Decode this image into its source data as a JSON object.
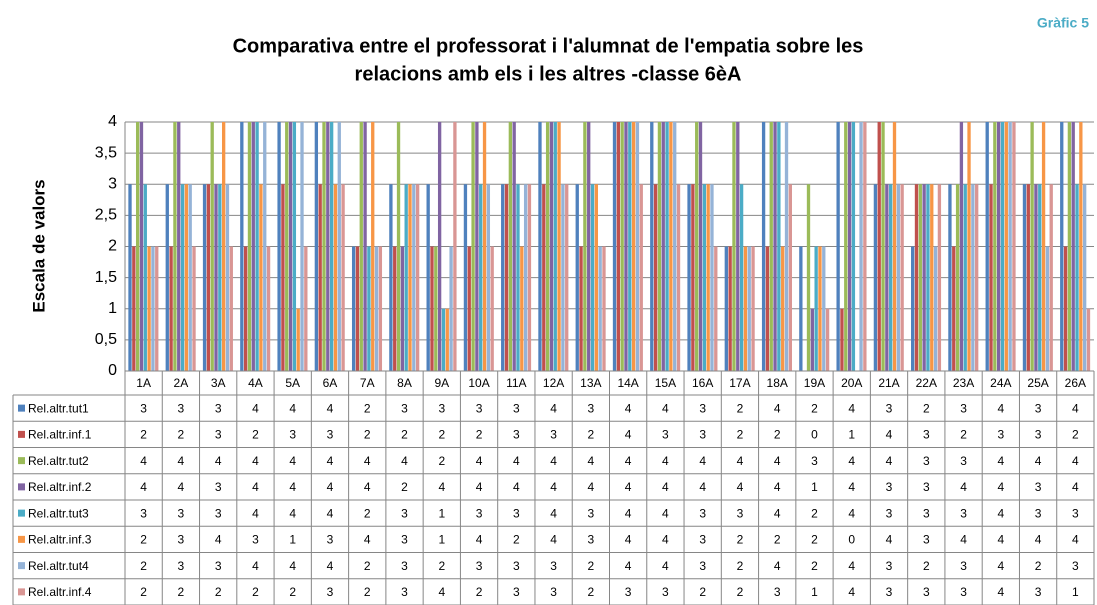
{
  "chart_data": {
    "type": "bar",
    "title": [
      "Comparativa entre el professorat i l'alumnat de l'empatia sobre les",
      "relacions amb els i les altres -classe 6èA"
    ],
    "badge": "Gràfic 5",
    "y_label": "Escala de valors",
    "categories": [
      "1A",
      "2A",
      "3A",
      "4A",
      "5A",
      "6A",
      "7A",
      "8A",
      "9A",
      "10A",
      "11A",
      "12A",
      "13A",
      "14A",
      "15A",
      "16A",
      "17A",
      "18A",
      "19A",
      "20A",
      "21A",
      "22A",
      "23A",
      "24A",
      "25A",
      "26A"
    ],
    "series": [
      {
        "name": "Rel.altr.tut1",
        "color": "#4F81BD",
        "values": [
          3,
          3,
          3,
          4,
          4,
          4,
          2,
          3,
          3,
          3,
          3,
          4,
          3,
          4,
          4,
          3,
          2,
          4,
          2,
          4,
          3,
          2,
          3,
          4,
          3,
          4
        ]
      },
      {
        "name": "Rel.altr.inf.1",
        "color": "#C0504D",
        "values": [
          2,
          2,
          3,
          2,
          3,
          3,
          2,
          2,
          2,
          2,
          3,
          3,
          2,
          4,
          3,
          3,
          2,
          2,
          0,
          1,
          4,
          3,
          2,
          3,
          3,
          2
        ]
      },
      {
        "name": "Rel.altr.tut2",
        "color": "#9BBB59",
        "values": [
          4,
          4,
          4,
          4,
          4,
          4,
          4,
          4,
          2,
          4,
          4,
          4,
          4,
          4,
          4,
          4,
          4,
          4,
          3,
          4,
          4,
          3,
          3,
          4,
          4,
          4
        ]
      },
      {
        "name": "Rel.altr.inf.2",
        "color": "#8064A2",
        "values": [
          4,
          4,
          3,
          4,
          4,
          4,
          4,
          2,
          4,
          4,
          4,
          4,
          4,
          4,
          4,
          4,
          4,
          4,
          1,
          4,
          3,
          3,
          4,
          4,
          3,
          4
        ]
      },
      {
        "name": "Rel.altr.tut3",
        "color": "#4BACC6",
        "values": [
          3,
          3,
          3,
          4,
          4,
          4,
          2,
          3,
          1,
          3,
          3,
          4,
          3,
          4,
          4,
          3,
          3,
          4,
          2,
          4,
          3,
          3,
          3,
          4,
          3,
          3
        ]
      },
      {
        "name": "Rel.altr.inf.3",
        "color": "#F79646",
        "values": [
          2,
          3,
          4,
          3,
          1,
          3,
          4,
          3,
          1,
          4,
          2,
          4,
          3,
          4,
          4,
          3,
          2,
          2,
          2,
          0,
          4,
          3,
          4,
          4,
          4,
          4
        ]
      },
      {
        "name": "Rel.altr.tut4",
        "color": "#95B3D7",
        "values": [
          2,
          3,
          3,
          4,
          4,
          4,
          2,
          3,
          2,
          3,
          3,
          3,
          2,
          4,
          4,
          3,
          2,
          4,
          2,
          4,
          3,
          2,
          3,
          4,
          2,
          3
        ]
      },
      {
        "name": "Rel.altr.inf.4",
        "color": "#D99694",
        "values": [
          2,
          2,
          2,
          2,
          2,
          3,
          2,
          3,
          4,
          2,
          3,
          3,
          2,
          3,
          3,
          2,
          2,
          3,
          1,
          4,
          3,
          3,
          3,
          4,
          3,
          1
        ]
      }
    ],
    "ylim": [
      0,
      4
    ],
    "yticks": [
      0,
      {
        "value": 0.5,
        "label": "0,5"
      },
      1,
      {
        "value": 1.5,
        "label": "1,5"
      },
      2,
      {
        "value": 2.5,
        "label": "2,5"
      },
      3,
      {
        "value": 3.5,
        "label": "3,5"
      },
      4
    ],
    "grid": true
  }
}
